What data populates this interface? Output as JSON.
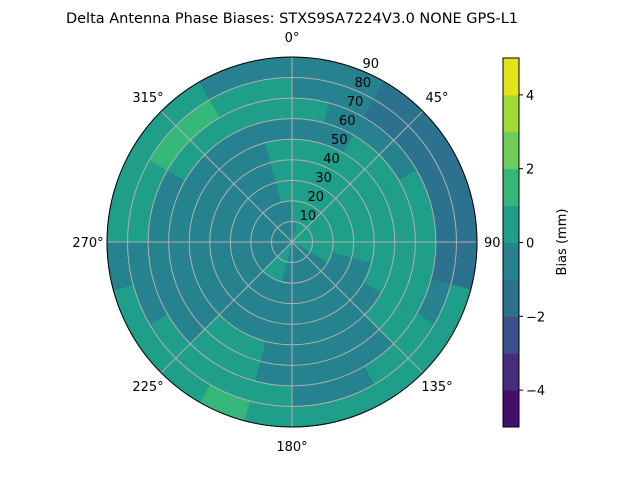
{
  "chart_data": {
    "type": "heatmap",
    "subtype": "polar-filled-contour",
    "title": "Delta Antenna Phase Biases: STXS9SA7224V3.0 NONE GPS-L1",
    "theta_zero": "north",
    "theta_direction": "clockwise",
    "theta_tick_labels": [
      "0°",
      "45°",
      "90",
      "135°",
      "180°",
      "225°",
      "270°",
      "315°"
    ],
    "r_tick_labels": [
      "10",
      "20",
      "30",
      "40",
      "50",
      "60",
      "70",
      "80",
      "90"
    ],
    "r_range": [
      0,
      90
    ],
    "grid": true,
    "azimuth_bins_deg": [
      0,
      15,
      30,
      45,
      60,
      75,
      90,
      105,
      120,
      135,
      150,
      165,
      180,
      195,
      210,
      225,
      240,
      255,
      270,
      285,
      300,
      315,
      330,
      345
    ],
    "zenith_bins_deg": [
      0,
      10,
      20,
      30,
      40,
      50,
      60,
      70,
      80
    ],
    "values_mm": [
      [
        -0.5,
        0.5,
        0.5,
        0.5,
        0.5,
        -0.5,
        0.5,
        -0.5,
        -0.5
      ],
      [
        0.5,
        0.5,
        0.5,
        0.5,
        0.5,
        -0.5,
        -0.5,
        -0.5,
        -0.5
      ],
      [
        0.5,
        0.5,
        0.5,
        0.5,
        0.5,
        0.5,
        -0.5,
        -1.5,
        -1.5
      ],
      [
        0.5,
        0.5,
        0.5,
        0.5,
        0.5,
        0.5,
        -0.5,
        -1.5,
        -1.5
      ],
      [
        0.5,
        0.5,
        0.5,
        0.5,
        0.5,
        0.5,
        0.5,
        -1.5,
        -1.5
      ],
      [
        0.5,
        0.5,
        0.5,
        0.5,
        0.5,
        0.5,
        0.5,
        -1.5,
        -1.5
      ],
      [
        0.5,
        0.5,
        0.5,
        0.5,
        0.5,
        0.5,
        0.5,
        -1.5,
        -1.5
      ],
      [
        0.5,
        0.5,
        -0.5,
        -0.5,
        0.5,
        0.5,
        0.5,
        -0.5,
        0.5
      ],
      [
        -0.5,
        -0.5,
        -0.5,
        -0.5,
        -0.5,
        0.5,
        0.5,
        0.5,
        0.5
      ],
      [
        -0.5,
        -0.5,
        -0.5,
        -0.5,
        -0.5,
        -0.5,
        -0.5,
        0.5,
        0.5
      ],
      [
        -0.5,
        -0.5,
        -0.5,
        -0.5,
        -0.5,
        -0.5,
        -0.5,
        -0.5,
        0.5
      ],
      [
        -0.5,
        -0.5,
        -0.5,
        -0.5,
        -0.5,
        -0.5,
        -0.5,
        -0.5,
        0.5
      ],
      [
        -0.5,
        -0.5,
        -0.5,
        -0.5,
        -0.5,
        -0.5,
        -0.5,
        0.5,
        0.5
      ],
      [
        0.5,
        0.5,
        -0.5,
        -0.5,
        -0.5,
        0.5,
        0.5,
        0.5,
        1.5
      ],
      [
        0.5,
        0.5,
        -0.5,
        -0.5,
        -0.5,
        0.5,
        0.5,
        0.5,
        0.5
      ],
      [
        -0.5,
        -0.5,
        -0.5,
        -0.5,
        -0.5,
        -0.5,
        -0.5,
        0.5,
        0.5
      ],
      [
        -0.5,
        -0.5,
        -0.5,
        -0.5,
        -0.5,
        -0.5,
        -0.5,
        -0.5,
        0.5
      ],
      [
        -0.5,
        -0.5,
        -0.5,
        -0.5,
        -0.5,
        -0.5,
        -0.5,
        -0.5,
        -0.5
      ],
      [
        -0.5,
        -0.5,
        -0.5,
        -0.5,
        -0.5,
        -0.5,
        -0.5,
        0.5,
        0.5
      ],
      [
        -0.5,
        -0.5,
        -0.5,
        -0.5,
        -0.5,
        -0.5,
        -0.5,
        0.5,
        0.5
      ],
      [
        -0.5,
        -0.5,
        -0.5,
        -0.5,
        -0.5,
        -0.5,
        0.5,
        1.5,
        0.5
      ],
      [
        -0.5,
        -0.5,
        -0.5,
        -0.5,
        -0.5,
        -0.5,
        0.5,
        1.5,
        0.5
      ],
      [
        -0.5,
        -0.5,
        -0.5,
        -0.5,
        -0.5,
        -0.5,
        0.5,
        0.5,
        -0.5
      ],
      [
        -0.5,
        -0.5,
        0.5,
        0.5,
        0.5,
        -0.5,
        0.5,
        0.5,
        -0.5
      ]
    ],
    "colorbar": {
      "label": "Bias (mm)",
      "levels": [
        -5,
        -4,
        -3,
        -2,
        -1,
        0,
        1,
        2,
        3,
        4,
        5
      ],
      "colors": [
        "#450e6e",
        "#472d7b",
        "#3b518b",
        "#2c718e",
        "#26828e",
        "#1f9e89",
        "#35b779",
        "#6ccd5a",
        "#a0da39",
        "#e2e418"
      ],
      "tick_values": [
        -4,
        -2,
        0,
        2,
        4
      ],
      "tick_labels": [
        "−4",
        "−2",
        "0",
        "2",
        "4"
      ],
      "range": [
        -5,
        5
      ]
    }
  }
}
